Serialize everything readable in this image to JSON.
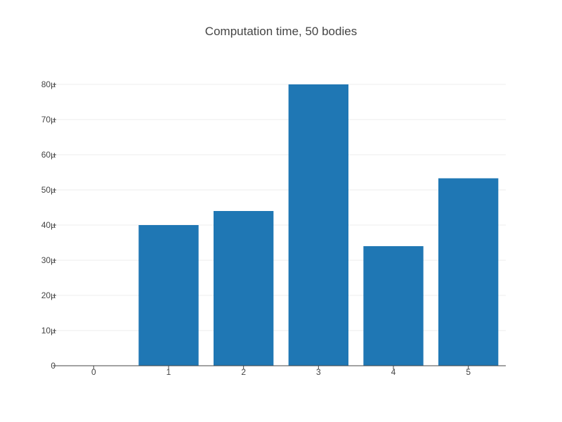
{
  "chart_data": {
    "type": "bar",
    "title": "Computation time, 50 bodies",
    "xlabel": "",
    "ylabel": "",
    "categories": [
      "0",
      "1",
      "2",
      "3",
      "4",
      "5"
    ],
    "values": [
      0,
      40,
      44,
      80,
      34,
      53.3
    ],
    "y_unit_suffix": "µ",
    "ylim": [
      0,
      80
    ],
    "yticks": [
      0,
      10,
      20,
      30,
      40,
      50,
      60,
      70,
      80
    ],
    "ytick_labels": [
      "0",
      "10µ",
      "20µ",
      "30µ",
      "40µ",
      "50µ",
      "60µ",
      "70µ",
      "80µ"
    ],
    "grid": true,
    "bar_color": "#1f77b4",
    "legend": "none"
  }
}
